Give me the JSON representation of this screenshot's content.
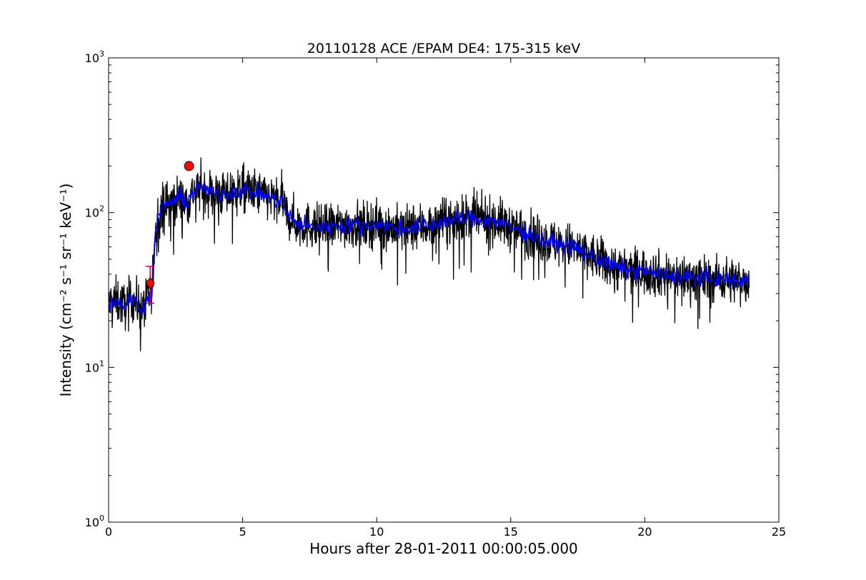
{
  "chart_data": {
    "type": "line",
    "title": "20110128 ACE /EPAM DE4: 175-315 keV",
    "xlabel": "Hours after 28-01-2011 00:00:05.000",
    "ylabel": "Intensity (cm⁻² s⁻¹ sr⁻¹ keV⁻¹)",
    "xlim": [
      0,
      25
    ],
    "ylim": [
      1,
      1000
    ],
    "yscale": "log",
    "grid": false,
    "xticks": [
      "0",
      "5",
      "10",
      "15",
      "20",
      "25"
    ],
    "yticks": [
      {
        "base": "10",
        "exp": "0"
      },
      {
        "base": "10",
        "exp": "1"
      },
      {
        "base": "10",
        "exp": "2"
      },
      {
        "base": "10",
        "exp": "3"
      }
    ],
    "series": [
      {
        "color": "#000000",
        "style": "raw-noisy",
        "x": [
          0.0,
          0.3,
          0.6,
          0.9,
          1.2,
          1.45,
          1.6,
          1.7,
          1.8,
          2.0,
          2.3,
          2.6,
          2.9,
          3.2,
          3.5,
          4.0,
          4.5,
          5.0,
          5.5,
          6.0,
          6.2,
          6.5,
          6.6,
          7.0,
          7.5,
          8.0,
          8.5,
          9.0,
          9.5,
          10.0,
          10.5,
          11.0,
          11.5,
          12.0,
          12.5,
          13.0,
          13.5,
          14.0,
          14.5,
          15.0,
          15.5,
          16.0,
          16.5,
          17.0,
          17.5,
          18.0,
          18.5,
          19.0,
          19.5,
          20.0,
          20.5,
          21.0,
          21.5,
          22.0,
          22.5,
          23.0,
          23.5,
          23.9
        ],
        "y": [
          26,
          27,
          25,
          28,
          24,
          27,
          29,
          55,
          90,
          110,
          115,
          125,
          115,
          140,
          145,
          130,
          135,
          140,
          135,
          125,
          120,
          120,
          100,
          85,
          82,
          80,
          82,
          84,
          82,
          85,
          80,
          78,
          82,
          82,
          88,
          90,
          92,
          90,
          88,
          80,
          75,
          68,
          64,
          62,
          58,
          52,
          48,
          44,
          42,
          42,
          40,
          39,
          38,
          38,
          37,
          37,
          36,
          36
        ]
      },
      {
        "color": "#0000ff",
        "style": "smoothed",
        "x": [
          0.0,
          0.3,
          0.6,
          0.9,
          1.2,
          1.45,
          1.6,
          1.7,
          1.8,
          2.0,
          2.3,
          2.6,
          2.9,
          3.2,
          3.5,
          4.0,
          4.5,
          5.0,
          5.5,
          6.0,
          6.2,
          6.5,
          6.6,
          7.0,
          7.5,
          8.0,
          8.5,
          9.0,
          9.5,
          10.0,
          10.5,
          11.0,
          11.5,
          12.0,
          12.5,
          13.0,
          13.5,
          14.0,
          14.5,
          15.0,
          15.5,
          16.0,
          16.5,
          17.0,
          17.5,
          18.0,
          18.5,
          19.0,
          19.5,
          20.0,
          20.5,
          21.0,
          21.5,
          22.0,
          22.5,
          23.0,
          23.5,
          23.9
        ],
        "y": [
          26,
          27,
          25,
          28,
          24,
          27,
          29,
          55,
          90,
          110,
          115,
          125,
          115,
          140,
          145,
          130,
          135,
          140,
          135,
          125,
          120,
          120,
          100,
          85,
          82,
          80,
          82,
          84,
          82,
          85,
          80,
          78,
          82,
          82,
          88,
          90,
          92,
          90,
          88,
          80,
          75,
          68,
          64,
          62,
          58,
          52,
          48,
          44,
          42,
          42,
          40,
          39,
          38,
          38,
          37,
          37,
          36,
          36
        ]
      }
    ],
    "markers": [
      {
        "kind": "onset-diamond",
        "x": 1.55,
        "y": 35,
        "err_low": 26,
        "err_high": 45,
        "color": "#ff0000"
      },
      {
        "kind": "peak-circle",
        "x": 3.0,
        "y": 200,
        "color": "#ff0000"
      }
    ]
  }
}
